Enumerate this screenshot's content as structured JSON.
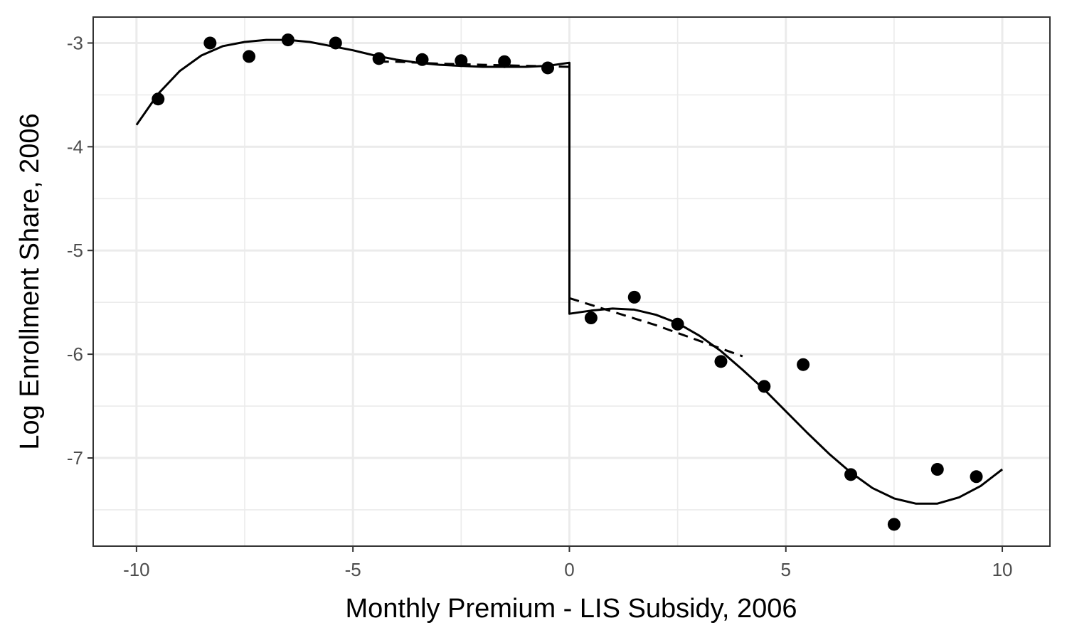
{
  "chart_data": {
    "type": "scatter",
    "title": "",
    "xlabel": "Monthly Premium - LIS Subsidy, 2006",
    "ylabel": "Log Enrollment Share, 2006",
    "xlim": [
      -11,
      11.1
    ],
    "ylim": [
      -7.85,
      -2.75
    ],
    "x_ticks": [
      -10,
      -5,
      0,
      5,
      10
    ],
    "x_tick_labels": [
      "-10",
      "-5",
      "0",
      "5",
      "10"
    ],
    "y_ticks": [
      -3,
      -4,
      -5,
      -6,
      -7
    ],
    "y_tick_labels": [
      "-3",
      "-4",
      "-5",
      "-6",
      "-7"
    ],
    "grid": true,
    "legend": "none",
    "cutoff": 0,
    "series": [
      {
        "style": "points",
        "x": [
          -9.5,
          -8.3,
          -7.4,
          -6.5,
          -5.4,
          -4.4,
          -3.4,
          -2.5,
          -1.5,
          -0.5,
          0.5,
          1.5,
          2.5,
          3.5,
          4.5,
          5.4,
          6.5,
          7.5,
          8.5,
          9.4
        ],
        "y": [
          -3.54,
          -3.0,
          -3.13,
          -2.97,
          -3.0,
          -3.15,
          -3.16,
          -3.17,
          -3.18,
          -3.24,
          -5.65,
          -5.45,
          -5.71,
          -6.07,
          -6.31,
          -6.1,
          -7.16,
          -7.64,
          -7.11,
          -7.18
        ]
      },
      {
        "style": "solid-fit",
        "x": [
          -10,
          -9.5,
          -9,
          -8.5,
          -8,
          -7.5,
          -7,
          -6.5,
          -6,
          -5.5,
          -5,
          -4.5,
          -4,
          -3.5,
          -3,
          -2.5,
          -2,
          -1.5,
          -1,
          -0.5,
          0,
          0,
          0.5,
          1,
          1.5,
          2,
          2.5,
          3,
          3.5,
          4,
          4.5,
          5,
          5.5,
          6,
          6.5,
          7,
          7.5,
          8,
          8.5,
          9,
          9.5,
          10
        ],
        "y": [
          -3.79,
          -3.49,
          -3.27,
          -3.12,
          -3.03,
          -2.99,
          -2.97,
          -2.97,
          -2.99,
          -3.03,
          -3.07,
          -3.12,
          -3.16,
          -3.19,
          -3.21,
          -3.22,
          -3.23,
          -3.23,
          -3.23,
          -3.22,
          -3.19,
          -5.61,
          -5.58,
          -5.56,
          -5.57,
          -5.62,
          -5.7,
          -5.82,
          -5.97,
          -6.15,
          -6.34,
          -6.55,
          -6.76,
          -6.96,
          -7.14,
          -7.29,
          -7.39,
          -7.44,
          -7.44,
          -7.38,
          -7.27,
          -7.11
        ]
      },
      {
        "style": "dashed-fit",
        "x": [
          -4.4,
          -4,
          -3,
          -2,
          -1,
          0,
          0,
          1,
          2,
          3,
          4
        ],
        "y": [
          -3.18,
          -3.18,
          -3.2,
          -3.21,
          -3.22,
          -3.23,
          -5.46,
          -5.59,
          -5.72,
          -5.87,
          -6.02
        ]
      }
    ]
  }
}
